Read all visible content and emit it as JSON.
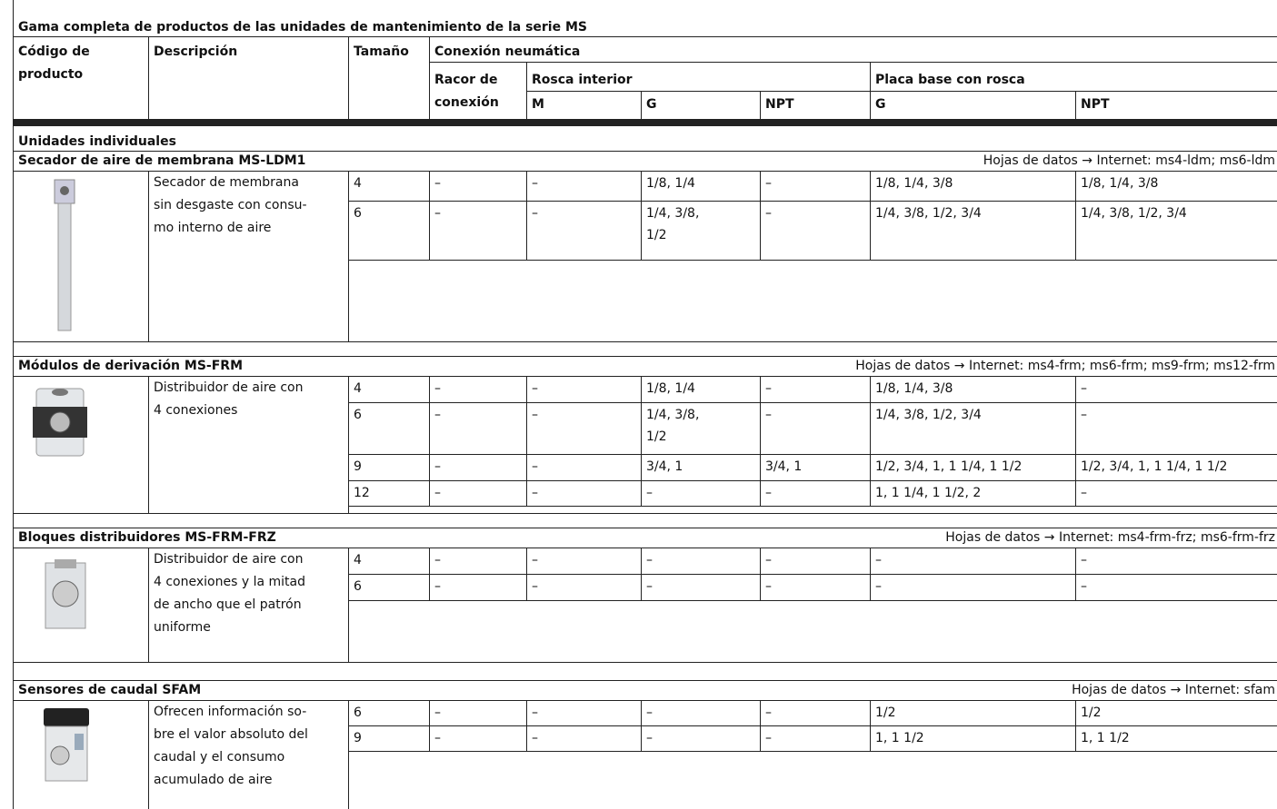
{
  "title": "Gama completa de productos de las unidades de mantenimiento de la serie MS",
  "header": {
    "code": [
      "Código de",
      "producto"
    ],
    "description": "Descripción",
    "size": "Tamaño",
    "connection": "Conexión neumática",
    "fitting": [
      "Racor de",
      "conexión"
    ],
    "internal_thread": "Rosca interior",
    "base_plate": "Placa base con rosca",
    "columns": [
      "M",
      "G",
      "NPT",
      "G",
      "NPT"
    ]
  },
  "group": "Unidades individuales",
  "sections": [
    {
      "title": "Secador de aire de membrana MS-LDM1",
      "datasheet": "Hojas de datos → Internet: ms4-ldm; ms6-ldm",
      "description": [
        "Secador de membrana",
        "sin desgaste con consu-",
        "mo interno de aire"
      ],
      "rows": [
        [
          "4",
          "–",
          "–",
          "1/8, 1/4",
          "–",
          "1/8, 1/4, 3/8",
          "1/8, 1/4, 3/8"
        ],
        [
          "6",
          "–",
          "–",
          "1/4, 3/8,\n1/2",
          "–",
          "1/4, 3/8, 1/2, 3/4",
          "1/4, 3/8, 1/2, 3/4"
        ]
      ]
    },
    {
      "title": "Módulos de derivación MS-FRM",
      "datasheet": "Hojas de datos → Internet: ms4-frm; ms6-frm; ms9-frm; ms12-frm",
      "description": [
        "Distribuidor de aire con",
        "4 conexiones"
      ],
      "rows": [
        [
          "4",
          "–",
          "–",
          "1/8, 1/4",
          "–",
          "1/8, 1/4, 3/8",
          "–"
        ],
        [
          "6",
          "–",
          "–",
          "1/4, 3/8,\n1/2",
          "–",
          "1/4, 3/8, 1/2, 3/4",
          "–"
        ],
        [
          "9",
          "–",
          "–",
          "3/4, 1",
          "3/4, 1",
          "1/2, 3/4, 1, 1 1/4, 1 1/2",
          "1/2, 3/4, 1, 1 1/4, 1 1/2"
        ],
        [
          "12",
          "–",
          "–",
          "–",
          "–",
          "1, 1 1/4, 1 1/2, 2",
          "–"
        ]
      ]
    },
    {
      "title": "Bloques distribuidores MS-FRM-FRZ",
      "datasheet": "Hojas de datos → Internet: ms4-frm-frz; ms6-frm-frz",
      "description": [
        "Distribuidor de aire con",
        "4 conexiones y la mitad",
        "de ancho que el patrón",
        "uniforme"
      ],
      "rows": [
        [
          "4",
          "–",
          "–",
          "–",
          "–",
          "–",
          "–"
        ],
        [
          "6",
          "–",
          "–",
          "–",
          "–",
          "–",
          "–"
        ]
      ]
    },
    {
      "title": "Sensores de caudal SFAM",
      "datasheet": "Hojas de datos → Internet: sfam",
      "description": [
        "Ofrecen información so-",
        "bre el valor absoluto del",
        "caudal y el consumo",
        "acumulado de aire"
      ],
      "rows": [
        [
          "6",
          "–",
          "–",
          "–",
          "–",
          "1/2",
          "1/2"
        ],
        [
          "9",
          "–",
          "–",
          "–",
          "–",
          "1, 1 1/2",
          "1, 1 1/2"
        ]
      ]
    }
  ]
}
